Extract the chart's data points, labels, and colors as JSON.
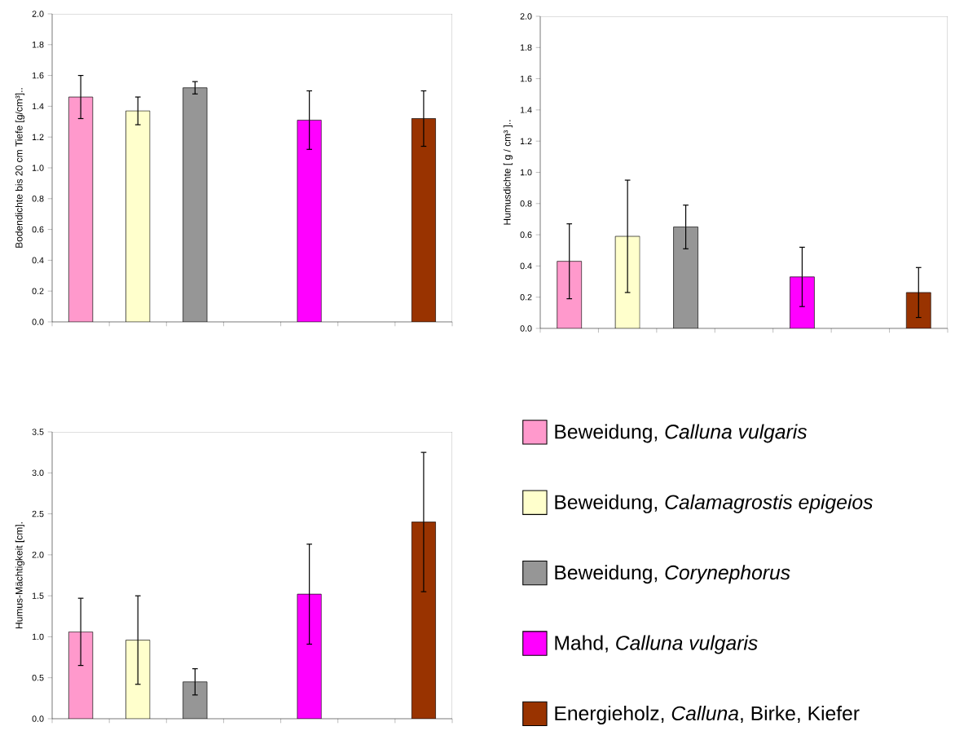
{
  "chart_data": [
    {
      "type": "bar",
      "ylabel": "Bodendichte bis 20 cm Tiefe [g/cm³]..",
      "categories": [
        null,
        null,
        null,
        null,
        null,
        null,
        null
      ],
      "ylim": [
        0,
        2
      ],
      "yticks": [
        {
          "value": 0,
          "label": "0.0"
        },
        {
          "value": 0.2,
          "label": "0.2"
        },
        {
          "value": 0.4,
          "label": "0.4"
        },
        {
          "value": 0.6,
          "label": "0.6"
        },
        {
          "value": 0.8,
          "label": "0.8"
        },
        {
          "value": 1,
          "label": "1.0"
        },
        {
          "value": 1.2,
          "label": "1.2"
        },
        {
          "value": 1.4,
          "label": "1.4"
        },
        {
          "value": 1.6,
          "label": "1.6"
        },
        {
          "value": 1.8,
          "label": "1.8"
        },
        {
          "value": 2,
          "label": "2.0"
        }
      ],
      "tick_labels": "y",
      "series": [
        {
          "color": "#ff99cc",
          "values": [
            1.46,
            null,
            null,
            null,
            null,
            null,
            null
          ],
          "errors": [
            0.14,
            null,
            null,
            null,
            null,
            null,
            null
          ]
        },
        {
          "color": "#ffffcc",
          "values": [
            null,
            1.37,
            null,
            null,
            null,
            null,
            null
          ],
          "errors": [
            null,
            0.09,
            null,
            null,
            null,
            null,
            null
          ]
        },
        {
          "color": "#969696",
          "values": [
            null,
            null,
            1.52,
            null,
            null,
            null,
            null
          ],
          "errors": [
            null,
            null,
            0.04,
            null,
            null,
            null,
            null
          ]
        },
        {
          "color": "#ff00ff",
          "values": [
            null,
            null,
            null,
            null,
            1.31,
            null,
            null
          ],
          "errors": [
            null,
            null,
            null,
            null,
            0.19,
            null,
            null
          ]
        },
        {
          "color": "#993300",
          "values": [
            null,
            null,
            null,
            null,
            null,
            null,
            1.32
          ],
          "errors": [
            null,
            null,
            null,
            null,
            null,
            null,
            0.18
          ]
        }
      ]
    },
    {
      "type": "bar",
      "ylabel": "Humusdichte [ g / cm³ ]..",
      "categories": [
        null,
        null,
        null,
        null,
        null,
        null,
        null
      ],
      "ylim": [
        0,
        2
      ],
      "yticks": [
        {
          "value": 0,
          "label": "0.0"
        },
        {
          "value": 0.2,
          "label": "0.2"
        },
        {
          "value": 0.4,
          "label": "0.4"
        },
        {
          "value": 0.6,
          "label": "0.6"
        },
        {
          "value": 0.8,
          "label": "0.8"
        },
        {
          "value": 1,
          "label": "1.0"
        },
        {
          "value": 1.2,
          "label": "1.2"
        },
        {
          "value": 1.4,
          "label": "1.4"
        },
        {
          "value": 1.6,
          "label": "1.6"
        },
        {
          "value": 1.8,
          "label": "1.8"
        },
        {
          "value": 2,
          "label": "2.0"
        }
      ],
      "tick_labels": "y",
      "series": [
        {
          "color": "#ff99cc",
          "values": [
            0.43,
            null,
            null,
            null,
            null,
            null,
            null
          ],
          "errors": [
            0.24,
            null,
            null,
            null,
            null,
            null,
            null
          ]
        },
        {
          "color": "#ffffcc",
          "values": [
            null,
            0.59,
            null,
            null,
            null,
            null,
            null
          ],
          "errors": [
            null,
            0.36,
            null,
            null,
            null,
            null,
            null
          ]
        },
        {
          "color": "#969696",
          "values": [
            null,
            null,
            0.65,
            null,
            null,
            null,
            null
          ],
          "errors": [
            null,
            null,
            0.14,
            null,
            null,
            null,
            null
          ]
        },
        {
          "color": "#ff00ff",
          "values": [
            null,
            null,
            null,
            null,
            0.33,
            null,
            null
          ],
          "errors": [
            null,
            null,
            null,
            null,
            0.19,
            null,
            null
          ]
        },
        {
          "color": "#993300",
          "values": [
            null,
            null,
            null,
            null,
            null,
            null,
            0.23
          ],
          "errors": [
            null,
            null,
            null,
            null,
            null,
            null,
            0.16
          ]
        }
      ]
    },
    {
      "type": "bar",
      "ylabel": "Humus-Mächtigkeit [cm].",
      "categories": [
        null,
        null,
        null,
        null,
        null,
        null,
        null
      ],
      "ylim": [
        0,
        3.5
      ],
      "yticks": [
        {
          "value": 0,
          "label": "0.0"
        },
        {
          "value": 0.5,
          "label": "0.5"
        },
        {
          "value": 1,
          "label": "1.0"
        },
        {
          "value": 1.5,
          "label": "1.5"
        },
        {
          "value": 2,
          "label": "2.0"
        },
        {
          "value": 2.5,
          "label": "2.5"
        },
        {
          "value": 3,
          "label": "3.0"
        },
        {
          "value": 3.5,
          "label": "3.5"
        }
      ],
      "tick_labels": "y",
      "legend": "right",
      "series": [
        {
          "name": "Beweidung, *Calluna vulgaris*",
          "color": "#ff99cc",
          "values": [
            1.06,
            null,
            null,
            null,
            null,
            null,
            null
          ],
          "errors": [
            0.41,
            null,
            null,
            null,
            null,
            null,
            null
          ]
        },
        {
          "name": "Beweidung, *Calamagrostis epigeios*",
          "color": "#ffffcc",
          "values": [
            null,
            0.96,
            null,
            null,
            null,
            null,
            null
          ],
          "errors": [
            null,
            0.54,
            null,
            null,
            null,
            null,
            null
          ]
        },
        {
          "name": "Beweidung, *Corynephorus*",
          "color": "#969696",
          "values": [
            null,
            null,
            0.45,
            null,
            null,
            null,
            null
          ],
          "errors": [
            null,
            null,
            0.16,
            null,
            null,
            null,
            null
          ]
        },
        {
          "name": "Mahd, *Calluna vulgaris*",
          "color": "#ff00ff",
          "values": [
            null,
            null,
            null,
            null,
            1.52,
            null,
            null
          ],
          "errors": [
            null,
            null,
            null,
            null,
            0.61,
            null,
            null
          ]
        },
        {
          "name": "Energieholz, *Calluna*, Birke, Kiefer",
          "color": "#993300",
          "values": [
            null,
            null,
            null,
            null,
            null,
            null,
            2.4
          ],
          "errors": [
            null,
            null,
            null,
            null,
            null,
            null,
            0.85
          ]
        }
      ]
    }
  ]
}
